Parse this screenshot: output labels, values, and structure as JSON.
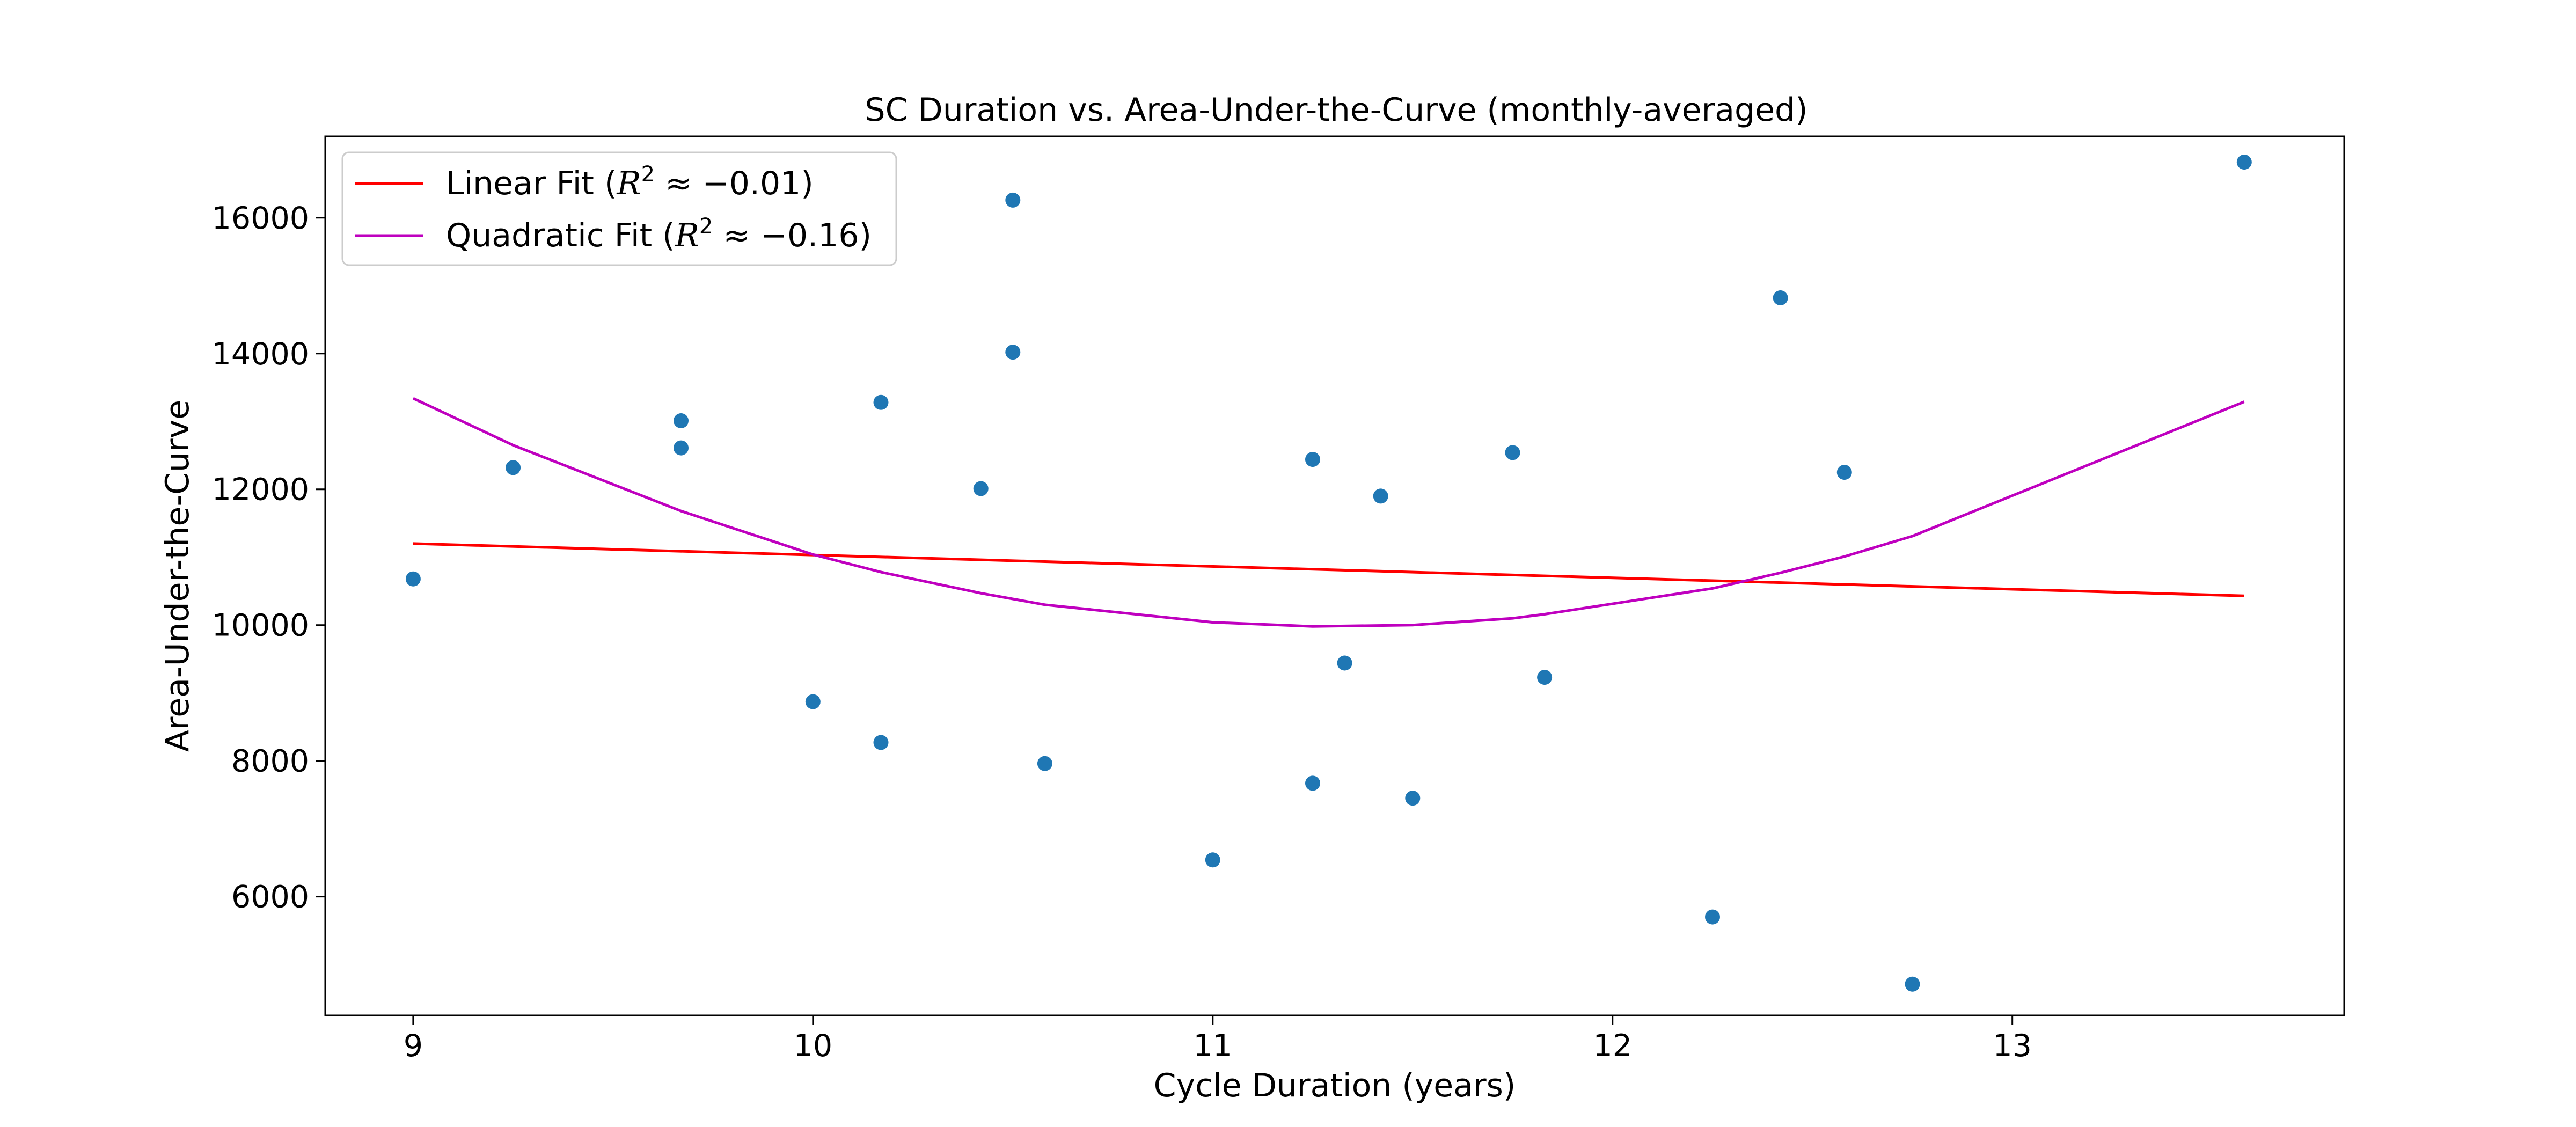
{
  "chart_data": {
    "type": "scatter",
    "title": "SC Duration vs. Area-Under-the-Curve (monthly-averaged)",
    "xlabel": "Cycle Duration (years)",
    "ylabel": "Area-Under-the-Curve",
    "xlim": [
      8.78,
      13.83
    ],
    "ylim": [
      4250,
      17200
    ],
    "xticks": [
      9,
      10,
      11,
      12,
      13
    ],
    "yticks": [
      6000,
      8000,
      10000,
      12000,
      14000,
      16000
    ],
    "grid": false,
    "legend_position": "top-left",
    "colors": {
      "points": "#1f77b4",
      "linear": "#ff0000",
      "quadratic": "#bf00bf"
    },
    "points": [
      {
        "x": 9.0,
        "y": 10680
      },
      {
        "x": 9.25,
        "y": 12320
      },
      {
        "x": 9.67,
        "y": 13010
      },
      {
        "x": 9.67,
        "y": 12610
      },
      {
        "x": 10.0,
        "y": 8870
      },
      {
        "x": 10.17,
        "y": 13280
      },
      {
        "x": 10.17,
        "y": 8270
      },
      {
        "x": 10.42,
        "y": 12010
      },
      {
        "x": 10.5,
        "y": 16260
      },
      {
        "x": 10.5,
        "y": 14020
      },
      {
        "x": 10.58,
        "y": 7960
      },
      {
        "x": 11.0,
        "y": 6540
      },
      {
        "x": 11.25,
        "y": 12440
      },
      {
        "x": 11.25,
        "y": 7670
      },
      {
        "x": 11.33,
        "y": 9440
      },
      {
        "x": 11.42,
        "y": 11900
      },
      {
        "x": 11.5,
        "y": 7450
      },
      {
        "x": 11.75,
        "y": 12540
      },
      {
        "x": 11.83,
        "y": 9230
      },
      {
        "x": 12.25,
        "y": 5700
      },
      {
        "x": 12.42,
        "y": 14820
      },
      {
        "x": 12.58,
        "y": 12250
      },
      {
        "x": 12.75,
        "y": 4710
      },
      {
        "x": 13.58,
        "y": 16820
      }
    ],
    "series": [
      {
        "name": "Linear Fit",
        "r2_text": "≈ −0.01",
        "x": [
          9.0,
          13.58
        ],
        "y": [
          11200,
          10430
        ]
      },
      {
        "name": "Quadratic Fit",
        "r2_text": "≈ −0.16",
        "x": [
          9.0,
          9.25,
          9.67,
          10.0,
          10.17,
          10.42,
          10.58,
          11.0,
          11.25,
          11.5,
          11.75,
          11.83,
          12.25,
          12.42,
          12.58,
          12.75,
          13.58
        ],
        "y": [
          13340,
          12650,
          11680,
          11040,
          10780,
          10470,
          10300,
          10040,
          9980,
          10000,
          10100,
          10160,
          10540,
          10770,
          11010,
          11310,
          13290
        ]
      }
    ]
  }
}
